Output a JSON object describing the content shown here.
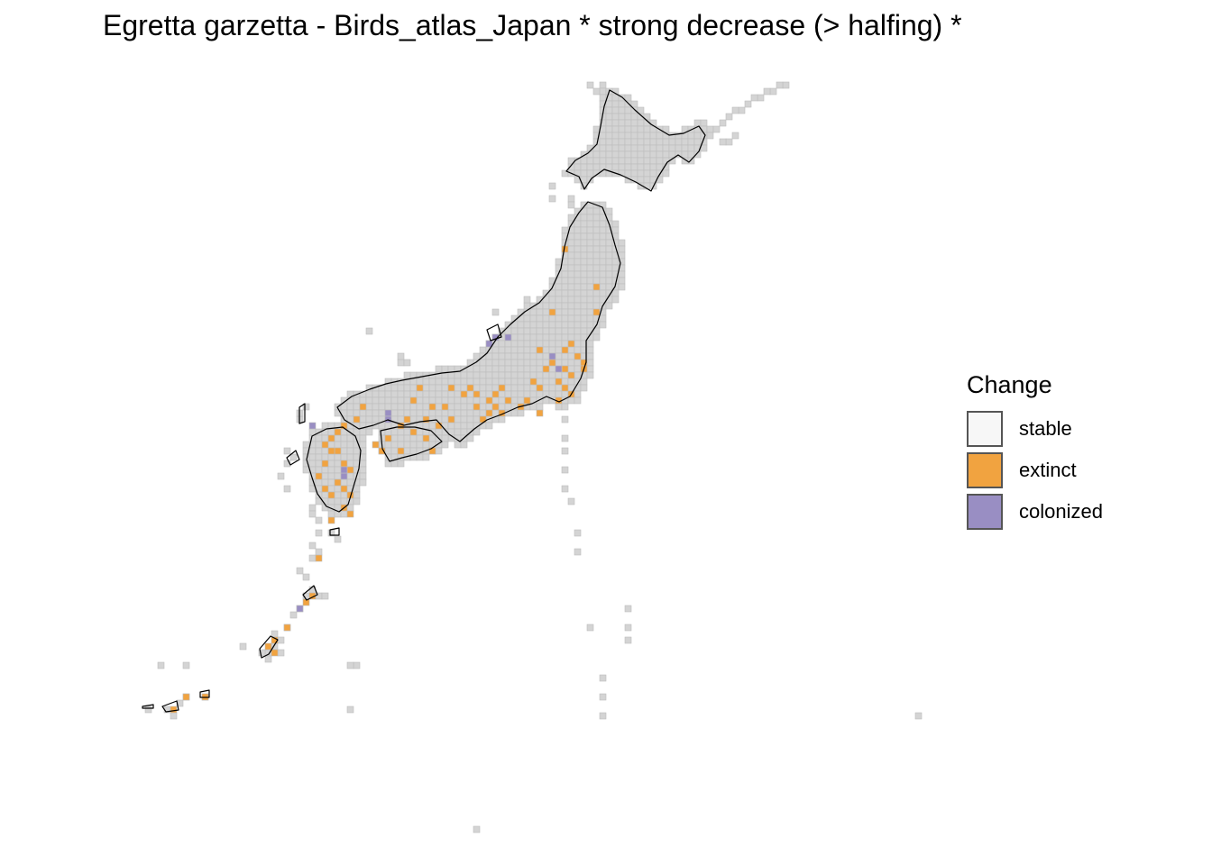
{
  "title": "Egretta garzetta - Birds_atlas_Japan * strong decrease (> halfing) *",
  "legend": {
    "title": "Change",
    "items": [
      {
        "label": "stable",
        "color": "#f7f7f7"
      },
      {
        "label": "extinct",
        "color": "#f1a340"
      },
      {
        "label": "colonized",
        "color": "#998ec3"
      }
    ]
  },
  "colors": {
    "grid_cell": "#d4d4d4",
    "grid_border": "#bdbdbd",
    "coastline": "#000000",
    "extinct": "#f1a340",
    "colonized": "#998ec3",
    "stable": "#f7f7f7"
  }
}
